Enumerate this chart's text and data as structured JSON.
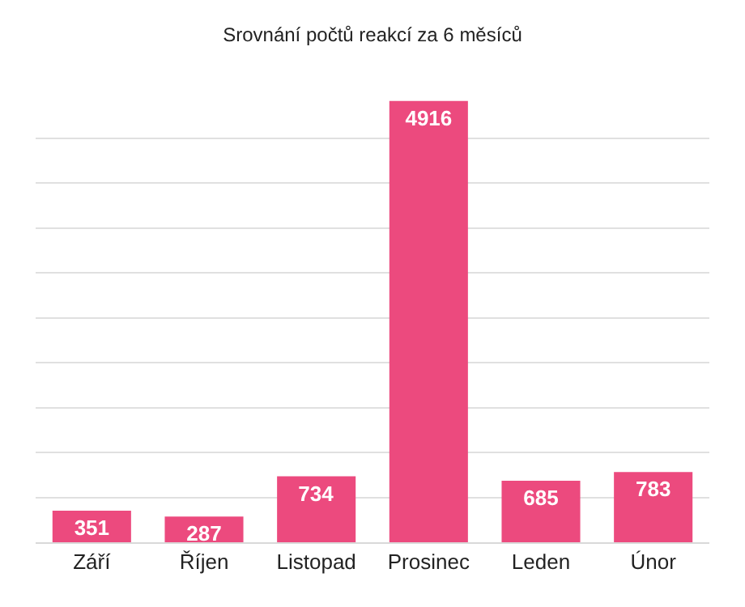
{
  "chart_data": {
    "type": "bar",
    "title": "Srovnání počtů reakcí za 6 měsíců",
    "categories": [
      "Září",
      "Říjen",
      "Listopad",
      "Prosinec",
      "Leden",
      "Únor"
    ],
    "values": [
      351,
      287,
      734,
      4916,
      685,
      783
    ],
    "color": "#ec4a7e",
    "yticks": [
      {
        "value": 0,
        "label": null
      },
      {
        "value": 500,
        "label": null
      },
      {
        "value": 1000,
        "label": null
      },
      {
        "value": 1500,
        "label": null
      },
      {
        "value": 2000,
        "label": null
      },
      {
        "value": 2500,
        "label": null
      },
      {
        "value": 3000,
        "label": null
      },
      {
        "value": 3500,
        "label": null
      },
      {
        "value": 4000,
        "label": null
      },
      {
        "value": 4500,
        "label": null
      }
    ],
    "tick_labels": "x",
    "grid": "y",
    "data_labels": true
  }
}
